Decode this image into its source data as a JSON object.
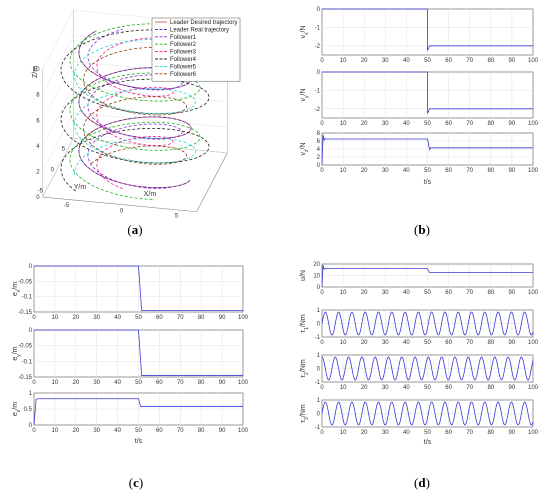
{
  "captions": [
    "(a)",
    "(b)",
    "(c)",
    "(d)"
  ],
  "chart_data": [
    {
      "type": "line3d",
      "panel": "a",
      "xlabel": "X/m",
      "ylabel": "Y/m",
      "zlabel": "Z/m",
      "xticks": [
        "-5",
        "0",
        "5"
      ],
      "yticks": [
        "-5",
        "0",
        "5"
      ],
      "zticks": [
        "0",
        "2",
        "4",
        "6",
        "8",
        "10"
      ],
      "zlim": [
        0,
        10
      ],
      "grid": true,
      "legend_position": "top-right",
      "series": [
        {
          "name": "Leader Desired trajectory",
          "color": "#e05050",
          "style": "solid",
          "radius": 5,
          "phase": 0
        },
        {
          "name": "Leader Real trajectory",
          "color": "#3030c0",
          "style": "dashed",
          "radius": 5,
          "phase": 0
        },
        {
          "name": "Follower1",
          "color": "#8a2be2",
          "style": "dashed",
          "radius": 4.2,
          "phase": 0.5
        },
        {
          "name": "Follower2",
          "color": "#1ab51a",
          "style": "dashed",
          "radius": 5.8,
          "phase": 1.1
        },
        {
          "name": "Follower3",
          "color": "#ff1493",
          "style": "dashed",
          "radius": 3.4,
          "phase": 1.7
        },
        {
          "name": "Follower4",
          "color": "#222222",
          "style": "dashed",
          "radius": 6.6,
          "phase": 2.3
        },
        {
          "name": "Follower5",
          "color": "#20d8d8",
          "style": "dashed",
          "radius": 5.4,
          "phase": 2.9
        },
        {
          "name": "Follower6",
          "color": "#8b4513",
          "style": "dashed",
          "radius": 4.6,
          "phase": 3.5
        }
      ]
    },
    {
      "type": "line",
      "panel": "b",
      "xlabel": "t/s",
      "xlim": [
        0,
        100
      ],
      "xticks": [
        0,
        10,
        20,
        30,
        40,
        50,
        60,
        70,
        80,
        90,
        100
      ],
      "subplots": [
        {
          "ylabel": "v_x/N",
          "ylim": [
            -2.5,
            0
          ],
          "yticks": [
            0,
            -1,
            -2
          ],
          "x": [
            0,
            50,
            50,
            51,
            51.5,
            100
          ],
          "y": [
            0,
            0,
            -2.25,
            -2.0,
            -2.0,
            -2.0
          ]
        },
        {
          "ylabel": "v_y/N",
          "ylim": [
            -2.5,
            0
          ],
          "yticks": [
            0,
            -1,
            -2
          ],
          "x": [
            0,
            50,
            50,
            51,
            51.5,
            100
          ],
          "y": [
            0,
            0,
            -2.25,
            -2.0,
            -2.0,
            -2.0
          ]
        },
        {
          "ylabel": "v_z/N",
          "ylim": [
            0,
            8
          ],
          "yticks": [
            0,
            2,
            4,
            6,
            8
          ],
          "x": [
            0,
            0.5,
            1,
            1.5,
            2,
            50,
            51,
            51.5,
            100
          ],
          "y": [
            0,
            7.5,
            6.2,
            6.6,
            6.5,
            6.5,
            3.8,
            4.3,
            4.3
          ]
        }
      ]
    },
    {
      "type": "line",
      "panel": "c",
      "xlabel": "t/s",
      "xlim": [
        0,
        100
      ],
      "xticks": [
        0,
        10,
        20,
        30,
        40,
        50,
        60,
        70,
        80,
        90,
        100
      ],
      "subplots": [
        {
          "ylabel": "e_x/m",
          "ylim": [
            -0.15,
            0
          ],
          "yticks": [
            0,
            -0.05,
            -0.1,
            -0.15
          ],
          "yticklabels": [
            "0",
            "-0.05",
            "-0.1",
            "-0.15"
          ],
          "x": [
            0,
            50,
            51.5,
            100
          ],
          "y": [
            0,
            0,
            -0.145,
            -0.145
          ]
        },
        {
          "ylabel": "e_y/m",
          "ylim": [
            -0.15,
            0
          ],
          "yticks": [
            0,
            -0.05,
            -0.1,
            -0.15
          ],
          "yticklabels": [
            "0",
            "-0.05",
            "-0.1",
            "-0.15"
          ],
          "x": [
            0,
            50,
            51.5,
            100
          ],
          "y": [
            0,
            0,
            -0.145,
            -0.145
          ]
        },
        {
          "ylabel": "e_z/m",
          "ylim": [
            0,
            1
          ],
          "yticks": [
            0,
            0.5,
            1
          ],
          "yticklabels": [
            "0",
            "0.5",
            "1"
          ],
          "x": [
            0,
            1,
            2,
            50,
            51,
            100
          ],
          "y": [
            0,
            0.8,
            0.82,
            0.82,
            0.58,
            0.58
          ]
        }
      ]
    },
    {
      "type": "line",
      "panel": "d",
      "xlabel": "t/s",
      "xlim": [
        0,
        100
      ],
      "xticks": [
        0,
        10,
        20,
        30,
        40,
        50,
        60,
        70,
        80,
        90,
        100
      ],
      "subplots": [
        {
          "ylabel": "u/N",
          "ylim": [
            0,
            20
          ],
          "yticks": [
            0,
            10,
            20
          ],
          "x": [
            0,
            0.5,
            1,
            1.5,
            2,
            50,
            51,
            100
          ],
          "y": [
            0,
            19,
            15.5,
            16.2,
            16.0,
            16.0,
            12.5,
            12.5
          ]
        },
        {
          "ylabel": "τ_1/Nm",
          "ylim": [
            -1,
            1
          ],
          "yticks": [
            -1,
            0,
            1
          ],
          "sine": {
            "amplitude": 0.85,
            "period": 6.3,
            "phase": 0
          }
        },
        {
          "ylabel": "τ_2/Nm",
          "ylim": [
            -1,
            1
          ],
          "yticks": [
            -1,
            0,
            1
          ],
          "sine": {
            "amplitude": 0.85,
            "period": 6.3,
            "phase": 1.57
          }
        },
        {
          "ylabel": "τ_3/Nm",
          "ylim": [
            -1,
            1
          ],
          "yticks": [
            -1,
            0,
            1
          ],
          "sine": {
            "amplitude": 0.85,
            "period": 6.3,
            "phase": 0
          }
        }
      ]
    }
  ]
}
